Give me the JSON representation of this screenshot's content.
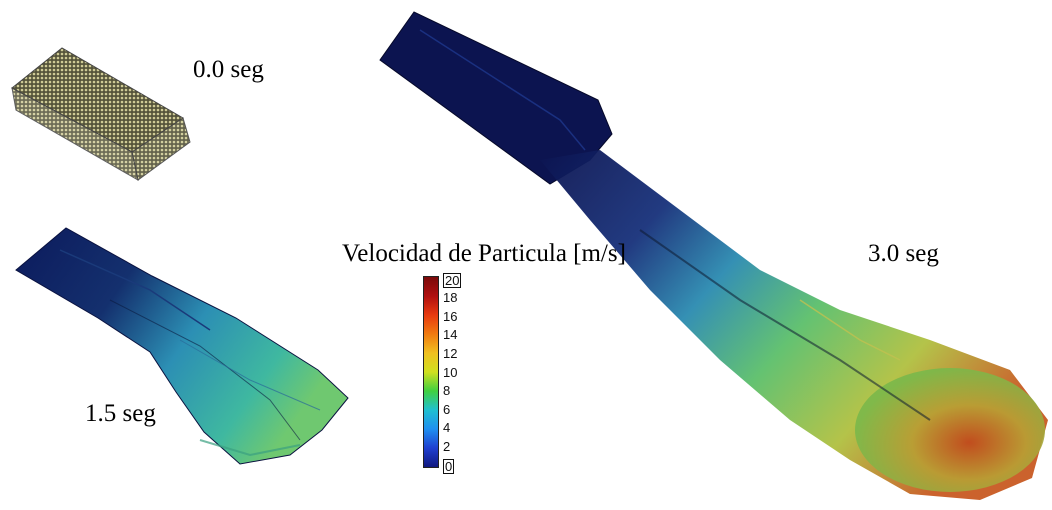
{
  "labels": {
    "t0": "0.0 seg",
    "t15": "1.5 seg",
    "t30": "3.0 seg",
    "legend_title": "Velocidad de Particula [m/s]"
  },
  "colorbar": {
    "ticks": [
      "20",
      "18",
      "16",
      "14",
      "12",
      "10",
      "8",
      "6",
      "4",
      "2",
      "0"
    ],
    "min": 0,
    "max": 20,
    "colors": [
      "#7a0a0a",
      "#b01010",
      "#e83a10",
      "#f07a10",
      "#f0c020",
      "#d0e020",
      "#40d040",
      "#20c0d0",
      "#2090f0",
      "#2040d0",
      "#101880"
    ]
  }
}
